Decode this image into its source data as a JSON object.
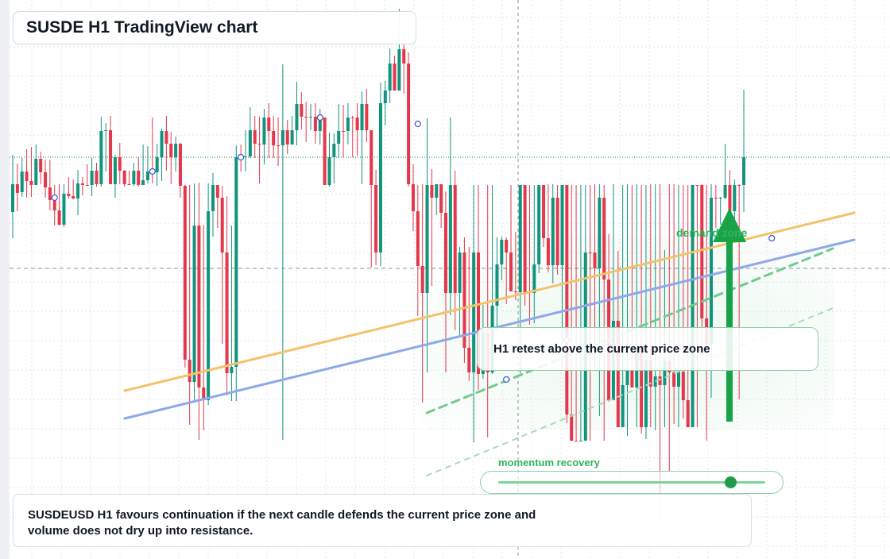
{
  "title": "SUSDE H1 TradingView chart",
  "callout": "H1 retest above the current price zone",
  "zone_label": "demand zone",
  "momentum": {
    "label": "momentum recovery",
    "level": 0.87
  },
  "summary": "SUSDEUSD H1 favours continuation if the next candle defends the current price zone and volume does not dry up into resistance.",
  "colors": {
    "bull": "#12937d",
    "bear": "#e5374b",
    "trend_orange": "#f3c26b",
    "trend_blue": "#8fa8ea",
    "zone_green": "#30b35a",
    "arrow_green": "#18a349"
  },
  "chart_data": {
    "type": "candlestick",
    "symbol": "SUSDEUSD",
    "timeframe": "H1",
    "ylim": [
      0,
      704
    ],
    "grid": true,
    "candles": [
      [
        267,
        232,
        300,
        195
      ],
      [
        232,
        243,
        266,
        206
      ],
      [
        242,
        216,
        248,
        199
      ],
      [
        216,
        228,
        249,
        188
      ],
      [
        228,
        233,
        248,
        185
      ],
      [
        233,
        200,
        233,
        182
      ],
      [
        200,
        217,
        232,
        191
      ],
      [
        217,
        236,
        249,
        201
      ],
      [
        236,
        252,
        265,
        201
      ],
      [
        252,
        265,
        284,
        233
      ],
      [
        265,
        283,
        284,
        232
      ],
      [
        283,
        244,
        286,
        232
      ],
      [
        244,
        247,
        250,
        223
      ],
      [
        247,
        250,
        251,
        226
      ],
      [
        250,
        231,
        271,
        214
      ],
      [
        231,
        233,
        246,
        223
      ],
      [
        233,
        233,
        234,
        207
      ],
      [
        233,
        215,
        247,
        199
      ],
      [
        215,
        232,
        235,
        205
      ],
      [
        232,
        165,
        235,
        147
      ],
      [
        165,
        164,
        216,
        155
      ],
      [
        164,
        232,
        232,
        146
      ],
      [
        232,
        198,
        249,
        195
      ],
      [
        198,
        215,
        232,
        180
      ],
      [
        215,
        232,
        235,
        214
      ],
      [
        232,
        232,
        233,
        215
      ],
      [
        232,
        215,
        234,
        205
      ],
      [
        215,
        233,
        235,
        198
      ],
      [
        233,
        227,
        233,
        182
      ],
      [
        227,
        216,
        231,
        184
      ],
      [
        216,
        217,
        231,
        148
      ],
      [
        217,
        198,
        234,
        181
      ],
      [
        198,
        165,
        228,
        162
      ],
      [
        165,
        181,
        215,
        146
      ],
      [
        181,
        198,
        232,
        166
      ],
      [
        198,
        181,
        216,
        172
      ],
      [
        181,
        234,
        249,
        180
      ],
      [
        234,
        453,
        463,
        233
      ],
      [
        453,
        481,
        535,
        233
      ],
      [
        481,
        284,
        504,
        231
      ],
      [
        284,
        488,
        554,
        230
      ],
      [
        488,
        504,
        542,
        283
      ],
      [
        504,
        266,
        510,
        231
      ],
      [
        266,
        233,
        298,
        218
      ],
      [
        233,
        249,
        287,
        233
      ],
      [
        249,
        318,
        433,
        234
      ],
      [
        318,
        470,
        498,
        247
      ],
      [
        470,
        462,
        505,
        284
      ],
      [
        462,
        198,
        505,
        183
      ],
      [
        198,
        198,
        216,
        182
      ],
      [
        198,
        197,
        216,
        164
      ],
      [
        197,
        164,
        199,
        135
      ],
      [
        164,
        181,
        199,
        146
      ],
      [
        181,
        182,
        231,
        147
      ],
      [
        182,
        148,
        207,
        137
      ],
      [
        148,
        165,
        199,
        130
      ],
      [
        165,
        183,
        199,
        146
      ],
      [
        183,
        183,
        209,
        148
      ],
      [
        183,
        164,
        554,
        81
      ],
      [
        164,
        182,
        194,
        151
      ],
      [
        182,
        164,
        168,
        146
      ],
      [
        164,
        131,
        183,
        103
      ],
      [
        131,
        147,
        163,
        116
      ],
      [
        147,
        148,
        179,
        128
      ],
      [
        148,
        147,
        164,
        131
      ],
      [
        147,
        165,
        181,
        130
      ],
      [
        165,
        148,
        182,
        137
      ],
      [
        148,
        233,
        233,
        148
      ],
      [
        233,
        198,
        235,
        167
      ],
      [
        198,
        181,
        231,
        168
      ],
      [
        181,
        165,
        199,
        131
      ],
      [
        165,
        165,
        198,
        132
      ],
      [
        165,
        148,
        182,
        130
      ],
      [
        148,
        148,
        198,
        146
      ],
      [
        148,
        164,
        196,
        130
      ],
      [
        164,
        131,
        232,
        115
      ],
      [
        131,
        164,
        179,
        112
      ],
      [
        164,
        233,
        337,
        220
      ],
      [
        233,
        318,
        334,
        214
      ],
      [
        318,
        130,
        335,
        104
      ],
      [
        130,
        114,
        158,
        102
      ],
      [
        114,
        80,
        130,
        61
      ],
      [
        80,
        114,
        110,
        70
      ],
      [
        114,
        62,
        114,
        11
      ],
      [
        62,
        80,
        118,
        44
      ],
      [
        80,
        232,
        235,
        66
      ],
      [
        232,
        266,
        291,
        207
      ],
      [
        266,
        335,
        398,
        233
      ],
      [
        335,
        369,
        507,
        232
      ],
      [
        369,
        233,
        469,
        149
      ],
      [
        233,
        249,
        360,
        213
      ],
      [
        249,
        232,
        271,
        232
      ],
      [
        232,
        268,
        287,
        232
      ],
      [
        268,
        369,
        469,
        241
      ],
      [
        369,
        233,
        397,
        148
      ],
      [
        233,
        369,
        416,
        215
      ],
      [
        369,
        318,
        425,
        311
      ],
      [
        318,
        438,
        457,
        299
      ],
      [
        438,
        469,
        480,
        311
      ],
      [
        469,
        318,
        557,
        233
      ],
      [
        318,
        471,
        491,
        233
      ],
      [
        471,
        419,
        477,
        384
      ],
      [
        419,
        469,
        551,
        233
      ],
      [
        469,
        385,
        471,
        233
      ],
      [
        385,
        333,
        416,
        299
      ],
      [
        333,
        302,
        353,
        298
      ],
      [
        302,
        318,
        383,
        299
      ],
      [
        318,
        367,
        367,
        233
      ],
      [
        367,
        368,
        378,
        292
      ],
      [
        368,
        233,
        470,
        233
      ],
      [
        233,
        368,
        385,
        233
      ],
      [
        368,
        369,
        409,
        233
      ],
      [
        369,
        333,
        407,
        233
      ],
      [
        333,
        233,
        344,
        233
      ],
      [
        233,
        300,
        311,
        233
      ],
      [
        300,
        334,
        343,
        232
      ],
      [
        334,
        249,
        357,
        232
      ],
      [
        249,
        334,
        346,
        233
      ],
      [
        334,
        233,
        464,
        233
      ],
      [
        233,
        522,
        533,
        233
      ],
      [
        522,
        555,
        555,
        233
      ],
      [
        555,
        556,
        556,
        233
      ],
      [
        556,
        555,
        555,
        233
      ],
      [
        555,
        318,
        554,
        233
      ],
      [
        318,
        318,
        555,
        233
      ],
      [
        318,
        338,
        462,
        232
      ],
      [
        338,
        249,
        524,
        232
      ],
      [
        249,
        352,
        555,
        233
      ],
      [
        352,
        504,
        506,
        295
      ],
      [
        504,
        404,
        424,
        232
      ],
      [
        404,
        538,
        538,
        316
      ],
      [
        538,
        485,
        538,
        233
      ],
      [
        485,
        467,
        549,
        232
      ],
      [
        467,
        488,
        488,
        233
      ],
      [
        488,
        439,
        538,
        232
      ],
      [
        439,
        538,
        546,
        233
      ],
      [
        538,
        454,
        553,
        233
      ],
      [
        454,
        487,
        538,
        232
      ],
      [
        487,
        474,
        542,
        232
      ],
      [
        474,
        485,
        649,
        232
      ],
      [
        485,
        454,
        538,
        315
      ],
      [
        454,
        469,
        593,
        232
      ],
      [
        469,
        487,
        534,
        232
      ],
      [
        487,
        468,
        538,
        233
      ],
      [
        468,
        504,
        527,
        233
      ],
      [
        504,
        538,
        538,
        233
      ],
      [
        538,
        233,
        538,
        233
      ],
      [
        233,
        233,
        538,
        233
      ],
      [
        233,
        401,
        437,
        232
      ],
      [
        401,
        433,
        555,
        233
      ],
      [
        433,
        249,
        501,
        232
      ],
      [
        249,
        250,
        287,
        233
      ],
      [
        250,
        249,
        283,
        248
      ],
      [
        249,
        233,
        251,
        181
      ],
      [
        233,
        266,
        436,
        214
      ],
      [
        266,
        233,
        279,
        226
      ],
      [
        233,
        233,
        503,
        232
      ],
      [
        233,
        198,
        267,
        113
      ]
    ],
    "markers": [
      {
        "candle": 9,
        "y": 249
      },
      {
        "candle": 30,
        "y": 216
      },
      {
        "candle": 49,
        "y": 198
      },
      {
        "candle": 66,
        "y": 148
      },
      {
        "candle": 87,
        "y": 156
      },
      {
        "candle": 106,
        "y": 478
      },
      {
        "candle": 119,
        "y": 428
      },
      {
        "candle": 148,
        "y": 443
      },
      {
        "candle": 163,
        "y": 300
      }
    ],
    "horizontal_levels": [
      {
        "y": 198,
        "style": "dotted",
        "color": "#0a7f52"
      },
      {
        "y": 338,
        "style": "dashed",
        "color": "#8a9099"
      }
    ],
    "crosshair_x": 652,
    "trendlines": [
      {
        "from": [
          157,
          492
        ],
        "to": [
          1075,
          268
        ],
        "color": "#f3c26b"
      },
      {
        "from": [
          157,
          527
        ],
        "to": [
          1075,
          302
        ],
        "color": "#8fa8ea"
      },
      {
        "from": [
          537,
          520
        ],
        "to": [
          1048,
          313
        ],
        "color": "#72c98c",
        "style": "dashed"
      },
      {
        "from": [
          537,
          599
        ],
        "to": [
          1053,
          386
        ],
        "color": "#a8dbb8",
        "style": "dashed"
      }
    ],
    "demand_zone": {
      "x0": 527,
      "x1": 1050,
      "y0": 298,
      "y1": 540
    },
    "arrow": {
      "x": 918,
      "y_from": 531,
      "y_to": 262
    }
  }
}
